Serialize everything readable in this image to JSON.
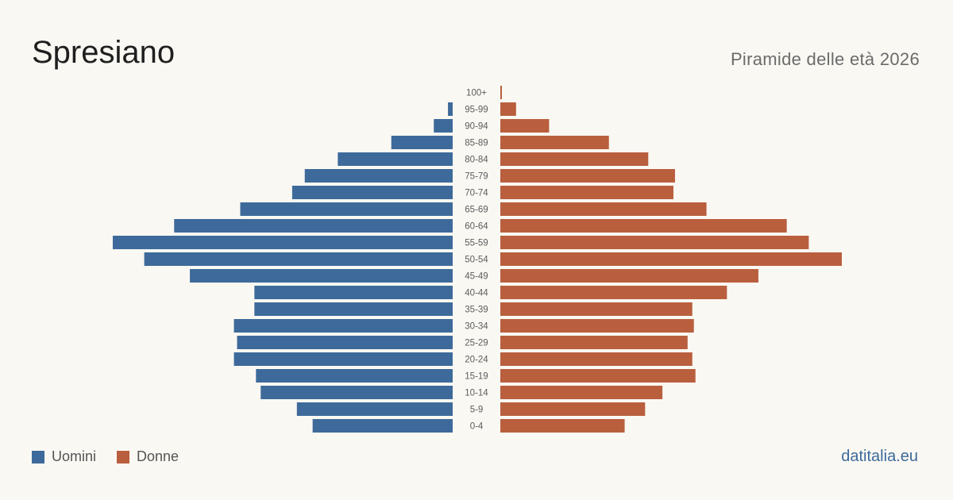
{
  "header": {
    "title": "Spresiano",
    "subtitle": "Piramide delle età 2026"
  },
  "legend": {
    "men_label": "Uomini",
    "women_label": "Donne"
  },
  "brand": "datitalia.eu",
  "colors": {
    "men": "#3d6a9a",
    "women": "#b95f3e",
    "background": "#faf8f3"
  },
  "chart_data": {
    "type": "bar",
    "orientation": "horizontal-pyramid",
    "categories": [
      "100+",
      "95-99",
      "90-94",
      "85-89",
      "80-84",
      "75-79",
      "70-74",
      "65-69",
      "60-64",
      "55-59",
      "50-54",
      "45-49",
      "40-44",
      "35-39",
      "30-34",
      "25-29",
      "20-24",
      "15-19",
      "10-14",
      "5-9",
      "0-4"
    ],
    "series": [
      {
        "name": "Uomini",
        "values": [
          0,
          3,
          12,
          39,
          73,
          94,
          102,
          135,
          177,
          216,
          196,
          167,
          126,
          126,
          139,
          137,
          139,
          125,
          122,
          99,
          89
        ]
      },
      {
        "name": "Donne",
        "values": [
          1,
          10,
          31,
          69,
          94,
          111,
          110,
          131,
          182,
          196,
          217,
          164,
          144,
          122,
          123,
          119,
          122,
          124,
          103,
          92,
          79
        ]
      }
    ],
    "grid": false,
    "legend_position": "bottom-left"
  }
}
